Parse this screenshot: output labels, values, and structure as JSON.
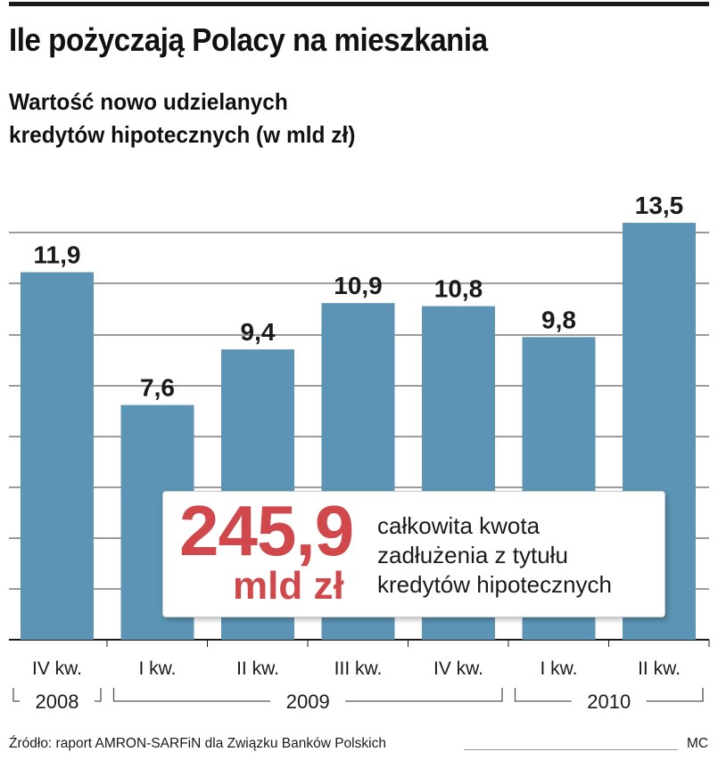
{
  "header": {
    "title": "Ile pożyczają Polacy na mieszkania",
    "subtitle_line1": "Wartość nowo udzielanych",
    "subtitle_line2": "kredytów hipotecznych (w mld zł)"
  },
  "callout": {
    "value": "245,9",
    "unit": "mld zł",
    "text_line1": "całkowita kwota",
    "text_line2": "zadłużenia z tytułu",
    "text_line3": "kredytów hipotecznych",
    "value_color": "#d0484b"
  },
  "footer": {
    "source": "Źródło: raport AMRON-SARFiN dla Związku Banków Polskich",
    "credit": "MC"
  },
  "chart_data": {
    "type": "bar",
    "categories": [
      "IV kw.",
      "I kw.",
      "II kw.",
      "III kw.",
      "IV kw.",
      "I kw.",
      "II kw."
    ],
    "values": [
      11.9,
      7.6,
      9.4,
      10.9,
      10.8,
      9.8,
      13.5
    ],
    "value_labels": [
      "11,9",
      "7,6",
      "9,4",
      "10,9",
      "10,8",
      "9,8",
      "13,5"
    ],
    "year_groups": [
      {
        "label": "2008",
        "span": [
          0,
          0
        ]
      },
      {
        "label": "2009",
        "span": [
          1,
          4
        ]
      },
      {
        "label": "2010",
        "span": [
          5,
          6
        ]
      }
    ],
    "grid": true,
    "bar_color": "#5b94b4",
    "value_label_color": "#1a1a1a",
    "inside_label_color": "#ffffff"
  }
}
